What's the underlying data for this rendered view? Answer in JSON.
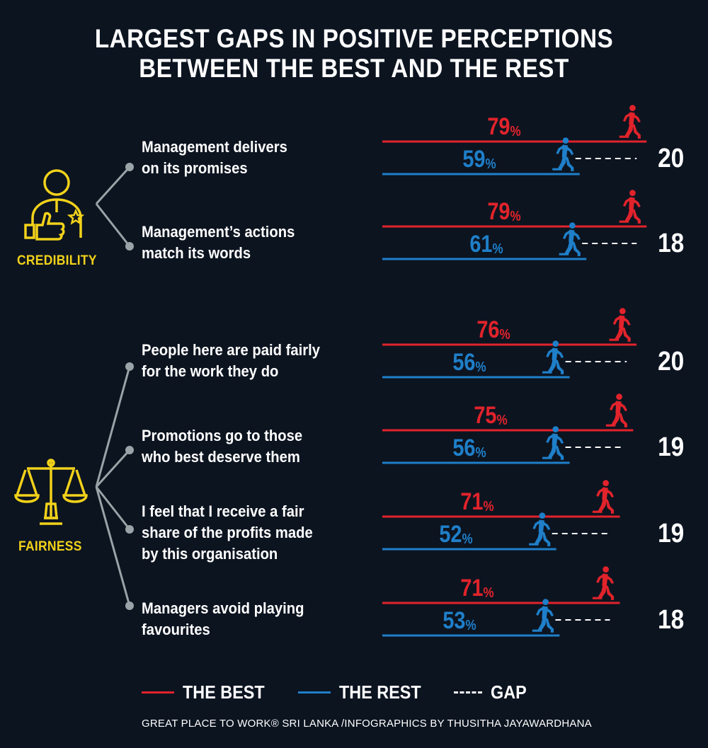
{
  "title": {
    "line1": "LARGEST GAPS IN POSITIVE PERCEPTIONS",
    "line2": "BETWEEN THE BEST AND THE REST"
  },
  "categories": {
    "credibility": {
      "label": "CREDIBILITY",
      "icon": "manager-thumbs-up-icon"
    },
    "fairness": {
      "label": "FAIRNESS",
      "icon": "scales-icon"
    }
  },
  "colors": {
    "best": "#e2232b",
    "rest": "#1f7fc9",
    "gap": "#ffffff",
    "category": "#f2d21a",
    "connector": "#9aa3a7"
  },
  "legend": {
    "best": "THE BEST",
    "rest": "THE REST",
    "gap": "GAP"
  },
  "credit": "GREAT PLACE TO WORK® SRI LANKA /INFOGRAPHICS BY THUSITHA JAYAWARDHANA",
  "chart_data": {
    "type": "bar",
    "title": "LARGEST GAPS IN POSITIVE PERCEPTIONS BETWEEN THE BEST AND THE REST",
    "xlabel": "",
    "ylabel": "",
    "unit": "%",
    "categories": [
      "Management delivers on its promises",
      "Management’s actions match its words",
      "People here are paid fairly for the work they do",
      "Promotions go to those who best deserve them",
      "I feel that I receive a fair share of the profits made by this organisation",
      "Managers avoid playing favourites"
    ],
    "items": [
      {
        "group": "CREDIBILITY",
        "lines": [
          "Management delivers",
          "on its promises"
        ],
        "best": 79,
        "rest": 59,
        "gap": 20
      },
      {
        "group": "CREDIBILITY",
        "lines": [
          "Management’s actions",
          "match its words"
        ],
        "best": 79,
        "rest": 61,
        "gap": 18
      },
      {
        "group": "FAIRNESS",
        "lines": [
          "People here are paid fairly",
          "for the work they do"
        ],
        "best": 76,
        "rest": 56,
        "gap": 20
      },
      {
        "group": "FAIRNESS",
        "lines": [
          "Promotions go to those",
          "who best deserve them"
        ],
        "best": 75,
        "rest": 56,
        "gap": 19
      },
      {
        "group": "FAIRNESS",
        "lines": [
          "I feel that I receive a fair",
          "share of the profits made",
          "by this organisation"
        ],
        "best": 71,
        "rest": 52,
        "gap": 19
      },
      {
        "group": "FAIRNESS",
        "lines": [
          "Managers avoid playing",
          "favourites"
        ],
        "best": 71,
        "rest": 53,
        "gap": 18
      }
    ],
    "series": [
      {
        "name": "THE BEST",
        "values": [
          79,
          79,
          76,
          75,
          71,
          71
        ]
      },
      {
        "name": "THE REST",
        "values": [
          59,
          61,
          56,
          56,
          52,
          53
        ]
      },
      {
        "name": "GAP",
        "values": [
          20,
          18,
          20,
          19,
          19,
          18
        ]
      }
    ],
    "legend": "bottom"
  }
}
